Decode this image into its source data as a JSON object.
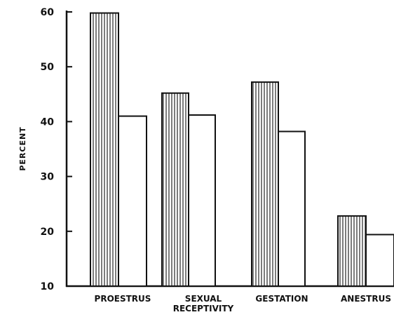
{
  "chart_data": {
    "type": "bar",
    "title": "",
    "xlabel": "",
    "ylabel": "PERCENT",
    "ylim": [
      10,
      60
    ],
    "yticks": [
      10,
      20,
      30,
      40,
      50,
      60
    ],
    "categories": [
      "PROESTRUS",
      "SEXUAL RECEPTIVITY",
      "GESTATION",
      "ANESTRUS"
    ],
    "category_lines": [
      [
        "PROESTRUS"
      ],
      [
        "SEXUAL",
        "RECEPTIVITY"
      ],
      [
        "GESTATION"
      ],
      [
        "ANESTRUS"
      ]
    ],
    "series": [
      {
        "values": [
          59.8,
          45.2,
          47.2,
          22.8
        ],
        "pattern": "vertical-hatch"
      },
      {
        "values": [
          41.0,
          41.2,
          38.2,
          19.4
        ],
        "pattern": "open"
      }
    ],
    "grid": false,
    "legend": "none"
  }
}
